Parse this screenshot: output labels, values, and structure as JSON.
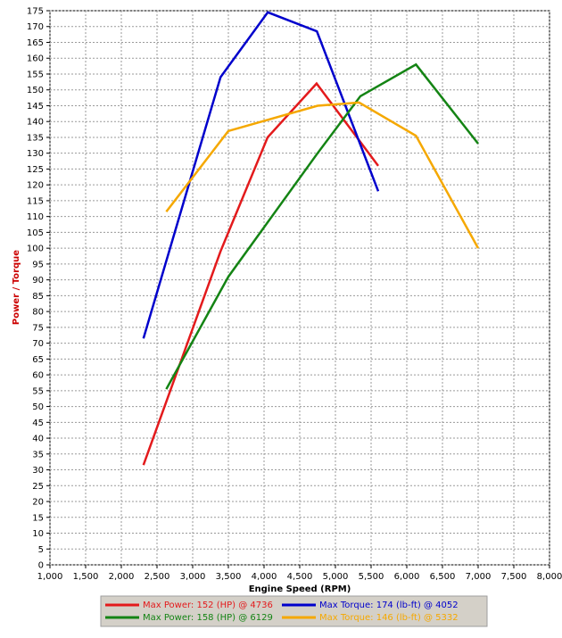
{
  "chart_data": {
    "type": "line",
    "title": "",
    "xlabel": "Engine Speed (RPM)",
    "ylabel": "Power / Torque",
    "xlim": [
      1000,
      8000
    ],
    "ylim": [
      0,
      175
    ],
    "grid": true,
    "x_ticks": [
      "1,000",
      "1,500",
      "2,000",
      "2,500",
      "3,000",
      "3,500",
      "4,000",
      "4,500",
      "5,000",
      "5,500",
      "6,000",
      "6,500",
      "7,000",
      "7,500",
      "8,000"
    ],
    "y_ticks": [
      "0",
      "5",
      "10",
      "15",
      "20",
      "25",
      "30",
      "35",
      "40",
      "45",
      "50",
      "55",
      "60",
      "65",
      "70",
      "75",
      "80",
      "85",
      "90",
      "95",
      "100",
      "105",
      "110",
      "115",
      "120",
      "125",
      "130",
      "135",
      "140",
      "145",
      "150",
      "155",
      "160",
      "165",
      "170",
      "175"
    ],
    "legend_position": "bottom",
    "series": [
      {
        "name": "Max Power: 152 (HP) @ 4736",
        "color": "#e31a1c",
        "x": [
          2310,
          3390,
          4050,
          4736,
          5600
        ],
        "y": [
          31.5,
          99,
          135,
          152,
          126
        ]
      },
      {
        "name": "Max Torque: 174 (lb-ft) @ 4052",
        "color": "#0000cc",
        "x": [
          2310,
          3390,
          4052,
          4740,
          5600
        ],
        "y": [
          71.5,
          154,
          174.5,
          168.5,
          118
        ]
      },
      {
        "name": "Max Power: 158 (HP) @ 6129",
        "color": "#148414",
        "x": [
          2630,
          3500,
          4750,
          5350,
          6129,
          7000
        ],
        "y": [
          55.5,
          91,
          130,
          148,
          158,
          133
        ]
      },
      {
        "name": "Max Torque: 146 (lb-ft) @ 5332",
        "color": "#f5a800",
        "x": [
          2630,
          3500,
          4750,
          5332,
          6129,
          7000
        ],
        "y": [
          111.5,
          137,
          145,
          146,
          135.5,
          100
        ]
      }
    ]
  }
}
